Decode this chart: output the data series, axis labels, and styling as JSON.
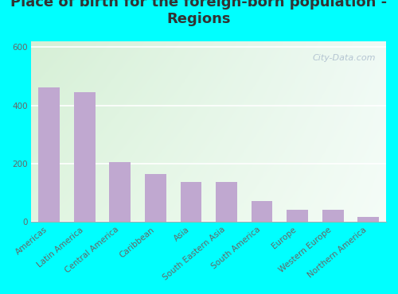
{
  "title": "Place of birth for the foreign-born population -\nRegions",
  "categories": [
    "Americas",
    "Latin America",
    "Central America",
    "Caribbean",
    "Asia",
    "South Eastern Asia",
    "South America",
    "Europe",
    "Western Europe",
    "Northern America"
  ],
  "values": [
    462,
    445,
    205,
    163,
    138,
    137,
    72,
    42,
    41,
    16
  ],
  "bar_color": "#c0a8d0",
  "ylim": [
    0,
    620
  ],
  "yticks": [
    0,
    200,
    400,
    600
  ],
  "bg_outer": "#00ffff",
  "bg_grad_left": "#d8eed8",
  "bg_grad_right": "#eef8f8",
  "bg_grad_top": "#eef8ee",
  "bg_grad_bottom": "#f8fff4",
  "watermark": "City-Data.com",
  "title_fontsize": 13,
  "tick_fontsize": 7.5,
  "title_color": "#333333"
}
